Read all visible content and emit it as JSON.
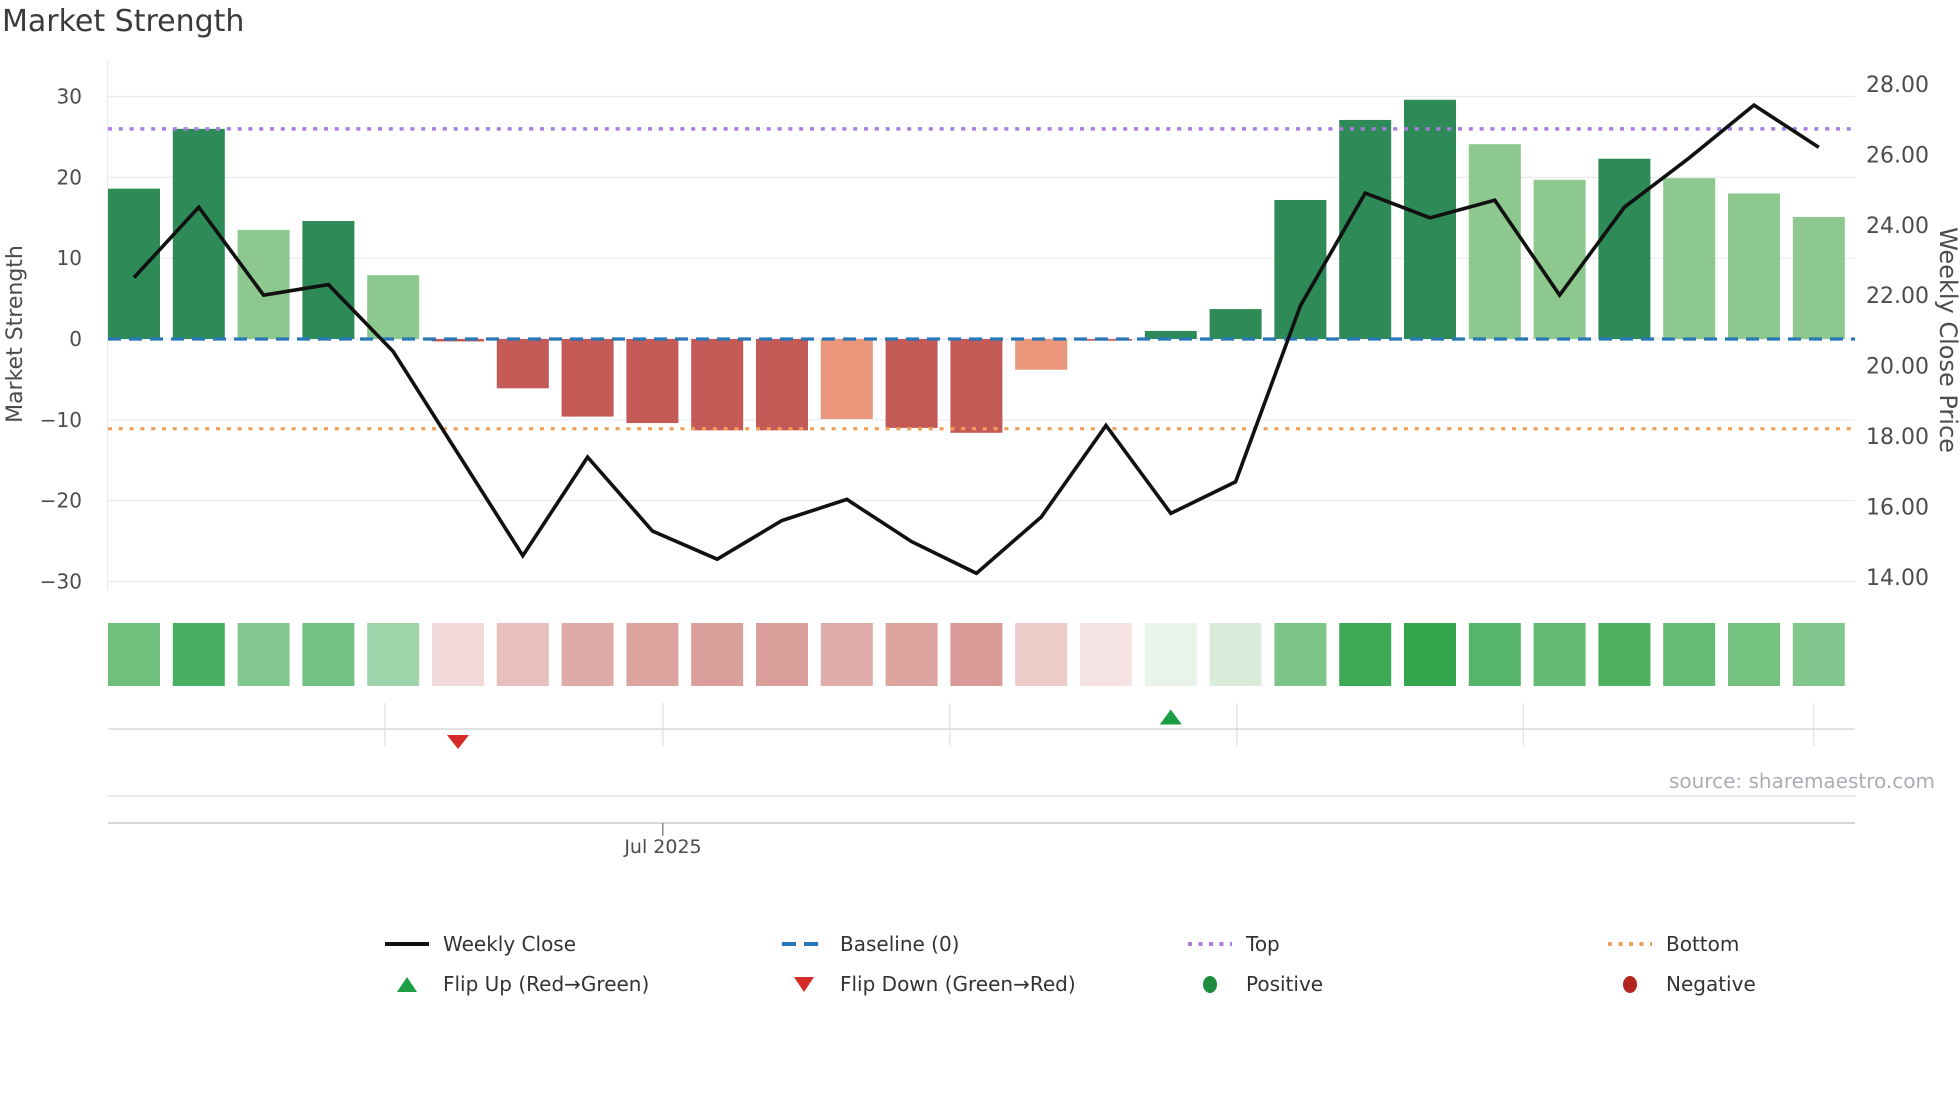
{
  "title": "Market Strength",
  "source": "source: sharemaestro.com",
  "axes": {
    "left": {
      "title": "Market Strength",
      "tick_labels": [
        "30",
        "20",
        "10",
        "0",
        "−10",
        "−20",
        "−30"
      ],
      "tick_values": [
        30,
        20,
        10,
        0,
        -10,
        -20,
        -30
      ]
    },
    "right": {
      "title": "Weekly Close Price",
      "tick_labels": [
        "28.00",
        "26.00",
        "24.00",
        "22.00",
        "20.00",
        "18.00",
        "16.00",
        "14.00"
      ],
      "tick_values": [
        28,
        26,
        24,
        22,
        20,
        18,
        16,
        14
      ]
    },
    "x": {
      "tick_label": "Jul 2025"
    }
  },
  "legend": {
    "items": [
      {
        "row": 0,
        "col": 0,
        "label": "Weekly Close",
        "type": "line",
        "color": "#111111"
      },
      {
        "row": 0,
        "col": 1,
        "label": "Baseline (0)",
        "type": "dash",
        "color": "#2878b8"
      },
      {
        "row": 0,
        "col": 2,
        "label": "Top",
        "type": "dots",
        "color": "#a97de0"
      },
      {
        "row": 0,
        "col": 3,
        "label": "Bottom",
        "type": "dots",
        "color": "#efa05a"
      },
      {
        "row": 1,
        "col": 0,
        "label": "Flip Up (Red→Green)",
        "type": "tri-up",
        "color": "#1b9e44"
      },
      {
        "row": 1,
        "col": 1,
        "label": "Flip Down (Green→Red)",
        "type": "tri-down",
        "color": "#d52b28"
      },
      {
        "row": 1,
        "col": 2,
        "label": "Positive",
        "type": "circle",
        "color": "#1e8e3e"
      },
      {
        "row": 1,
        "col": 3,
        "label": "Negative",
        "type": "circle",
        "color": "#b0261f"
      }
    ]
  },
  "chart_data": {
    "type": "bar",
    "title": "Market Strength",
    "weeks": 27,
    "x": [
      1,
      2,
      3,
      4,
      5,
      6,
      7,
      8,
      9,
      10,
      11,
      12,
      13,
      14,
      15,
      16,
      17,
      18,
      19,
      20,
      21,
      22,
      23,
      24,
      25,
      26,
      27
    ],
    "series": [
      {
        "name": "Market Strength",
        "type": "bar",
        "axis": "left",
        "values": [
          18.6,
          26.0,
          13.5,
          14.6,
          7.9,
          -0.3,
          -6.1,
          -9.6,
          -10.4,
          -11.3,
          -11.3,
          -9.9,
          -11.0,
          -11.6,
          -3.8,
          -0.2,
          1.0,
          3.7,
          17.2,
          27.1,
          29.6,
          24.1,
          19.7,
          22.3,
          19.9,
          18.0,
          15.1
        ],
        "styles": [
          "dark",
          "dark",
          "light",
          "dark",
          "light",
          "red",
          "red",
          "red",
          "red",
          "red",
          "red",
          "salmon",
          "red",
          "red",
          "salmon",
          "red",
          "dark",
          "dark",
          "dark",
          "dark",
          "dark",
          "light",
          "light",
          "dark",
          "light",
          "light",
          "light"
        ]
      },
      {
        "name": "Weekly Close",
        "type": "line",
        "axis": "right",
        "values": [
          22.5,
          24.5,
          22.0,
          22.3,
          20.4,
          17.5,
          14.6,
          17.4,
          15.3,
          14.5,
          15.6,
          16.2,
          15.0,
          14.1,
          15.7,
          18.3,
          15.8,
          16.7,
          21.7,
          24.9,
          24.2,
          24.7,
          22.0,
          24.5,
          25.9,
          27.4,
          26.2
        ]
      }
    ],
    "heatmap_colors": [
      "#6ec07c",
      "#48b060",
      "#82c88e",
      "#74c283",
      "#9fd3a9",
      "#f2dada",
      "#e7c0bd",
      "#dfaba8",
      "#dca49f",
      "#db9f9b",
      "#db9f9b",
      "#e0aca9",
      "#dca49f",
      "#d99b97",
      "#eccbc9",
      "#f6e3e3",
      "#e8f3e9",
      "#d8ecd9",
      "#7cc487",
      "#3dab56",
      "#35a54e",
      "#57b569",
      "#63ba72",
      "#4fb160",
      "#66bb72",
      "#74c180",
      "#81c78d"
    ],
    "reference_lines": {
      "baseline": {
        "name": "Baseline (0)",
        "value": 0,
        "color": "#2878b8"
      },
      "top": {
        "name": "Top",
        "value": 26,
        "color": "#a97de0"
      },
      "bottom": {
        "name": "Bottom",
        "value": -11.1,
        "color": "#efa05a"
      }
    },
    "markers": {
      "flip_down_week": 6,
      "flip_up_week": 17,
      "flip_down_color": "#d52b28",
      "flip_up_color": "#1b9e44"
    },
    "month_ticks": {
      "week_positions": [
        4.87,
        9.16,
        13.59,
        18.02,
        22.44,
        26.92
      ],
      "labeled_index": 1,
      "label": "Jul 2025"
    },
    "ylim_left": [
      -30,
      30
    ],
    "ylim_right": [
      14,
      28
    ],
    "palette": {
      "bar_dark_green": "#2e8b57",
      "bar_light_green": "#8dc88f",
      "bar_red": "#c45a56",
      "bar_salmon": "#e9967a",
      "line": "#111111"
    }
  }
}
